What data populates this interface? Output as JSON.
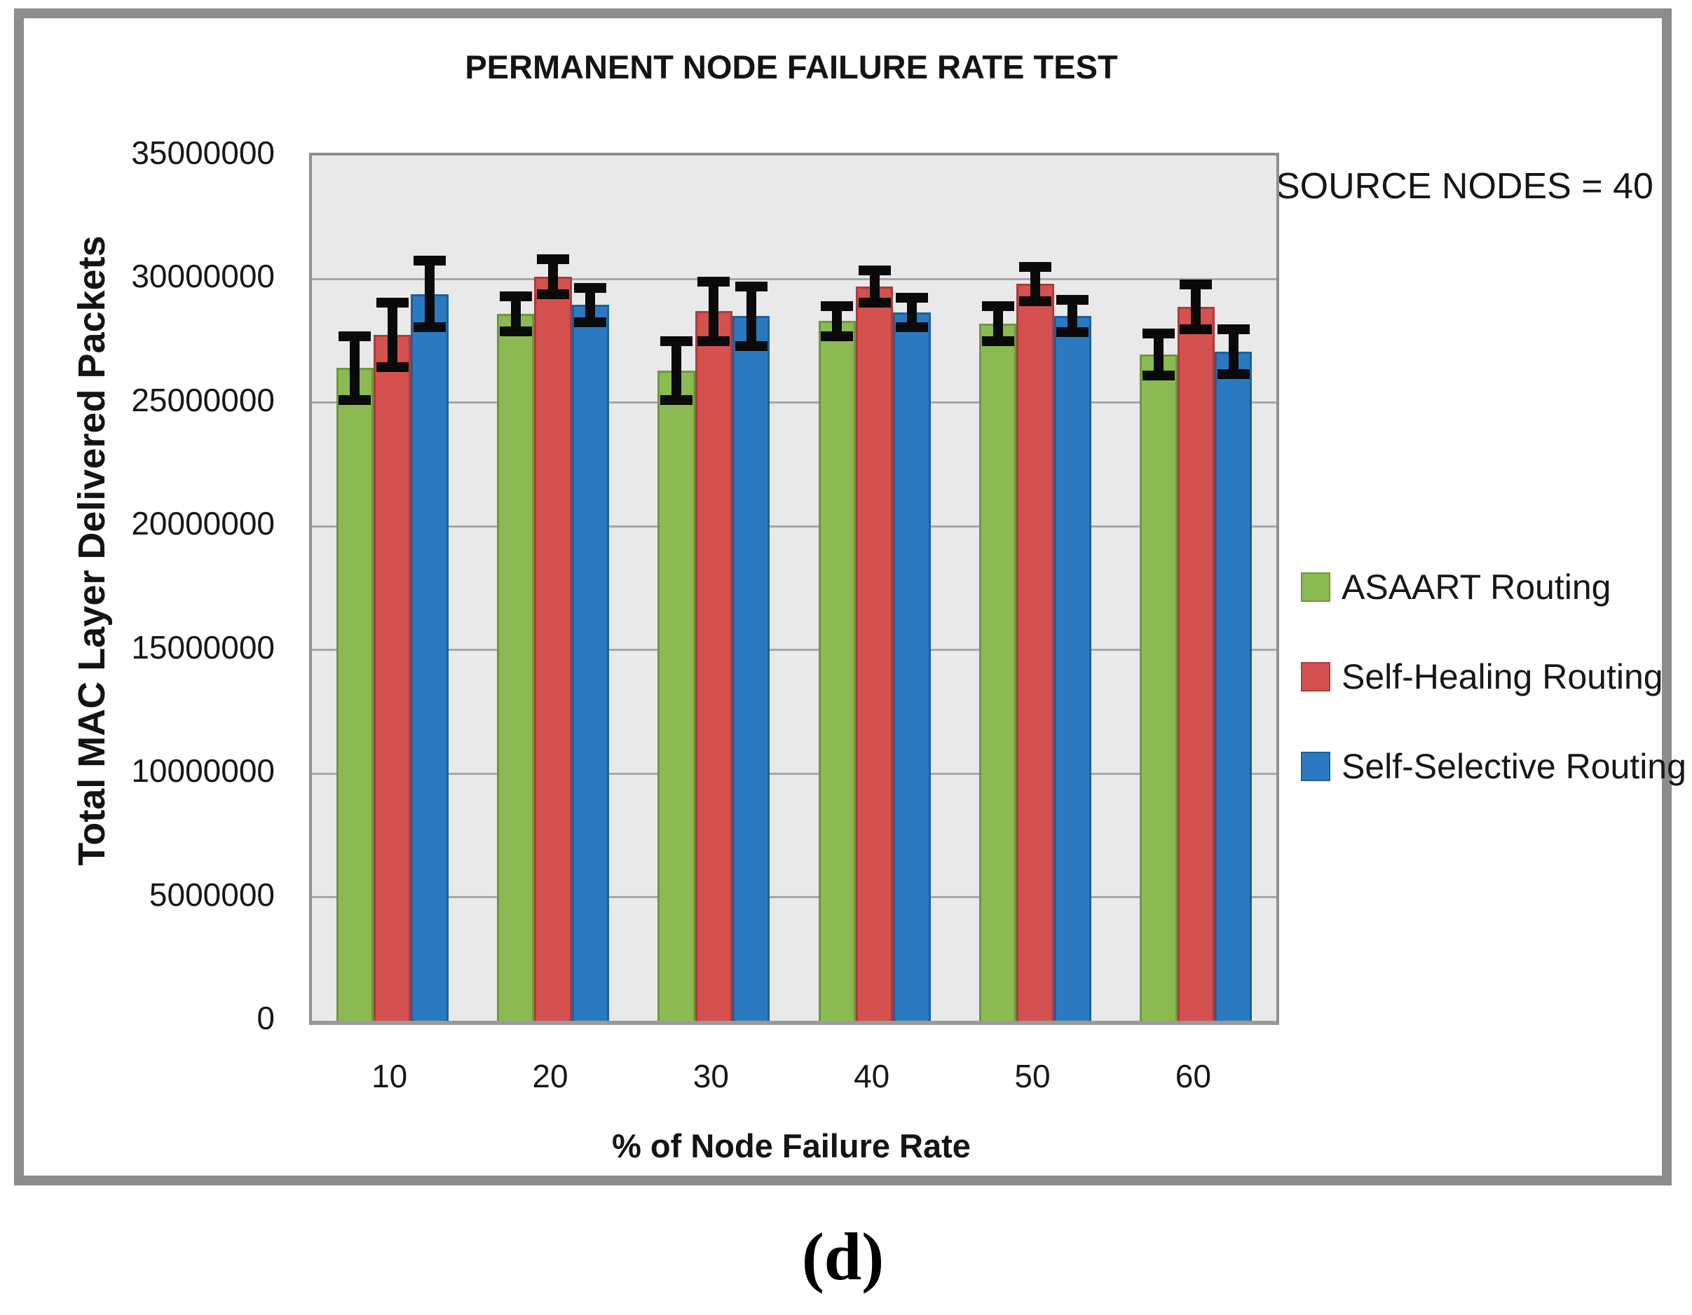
{
  "chart_data": {
    "type": "bar",
    "title": "PERMANENT NODE FAILURE RATE TEST",
    "annotation": "SOURCE NODES = 40",
    "xlabel": "% of Node Failure Rate",
    "ylabel": "Total MAC Layer Delivered Packets",
    "categories": [
      "10",
      "20",
      "30",
      "40",
      "50",
      "60"
    ],
    "series": [
      {
        "name": "ASAART Routing",
        "color": "#8cba52",
        "border_color": "#6f973c",
        "values": [
          26400000,
          28600000,
          26300000,
          28300000,
          28200000,
          26950000
        ],
        "errors": [
          1500000,
          900000,
          1400000,
          800000,
          900000,
          1050000
        ]
      },
      {
        "name": "Self-Healing Routing",
        "color": "#d45150",
        "border_color": "#aa3c3c",
        "values": [
          27750000,
          30100000,
          28700000,
          29700000,
          29800000,
          28880000
        ],
        "errors": [
          1500000,
          900000,
          1400000,
          850000,
          900000,
          1100000
        ]
      },
      {
        "name": "Self-Selective Routing",
        "color": "#2b7ac1",
        "border_color": "#1f5f99",
        "values": [
          29400000,
          28950000,
          28500000,
          28650000,
          28500000,
          27070000
        ],
        "errors": [
          1550000,
          900000,
          1400000,
          800000,
          850000,
          1100000
        ]
      }
    ],
    "ylim": [
      0,
      35000000
    ],
    "ytick_step": 5000000,
    "ytick_labels": [
      "0",
      "5000000",
      "10000000",
      "15000000",
      "20000000",
      "25000000",
      "30000000",
      "35000000"
    ],
    "grid": true,
    "legend_position": "right",
    "plot_bg": "#e9e9e9",
    "grid_color": "#a6a6a6",
    "error_bar_color": "#0a0a0a"
  },
  "caption": "(d)"
}
